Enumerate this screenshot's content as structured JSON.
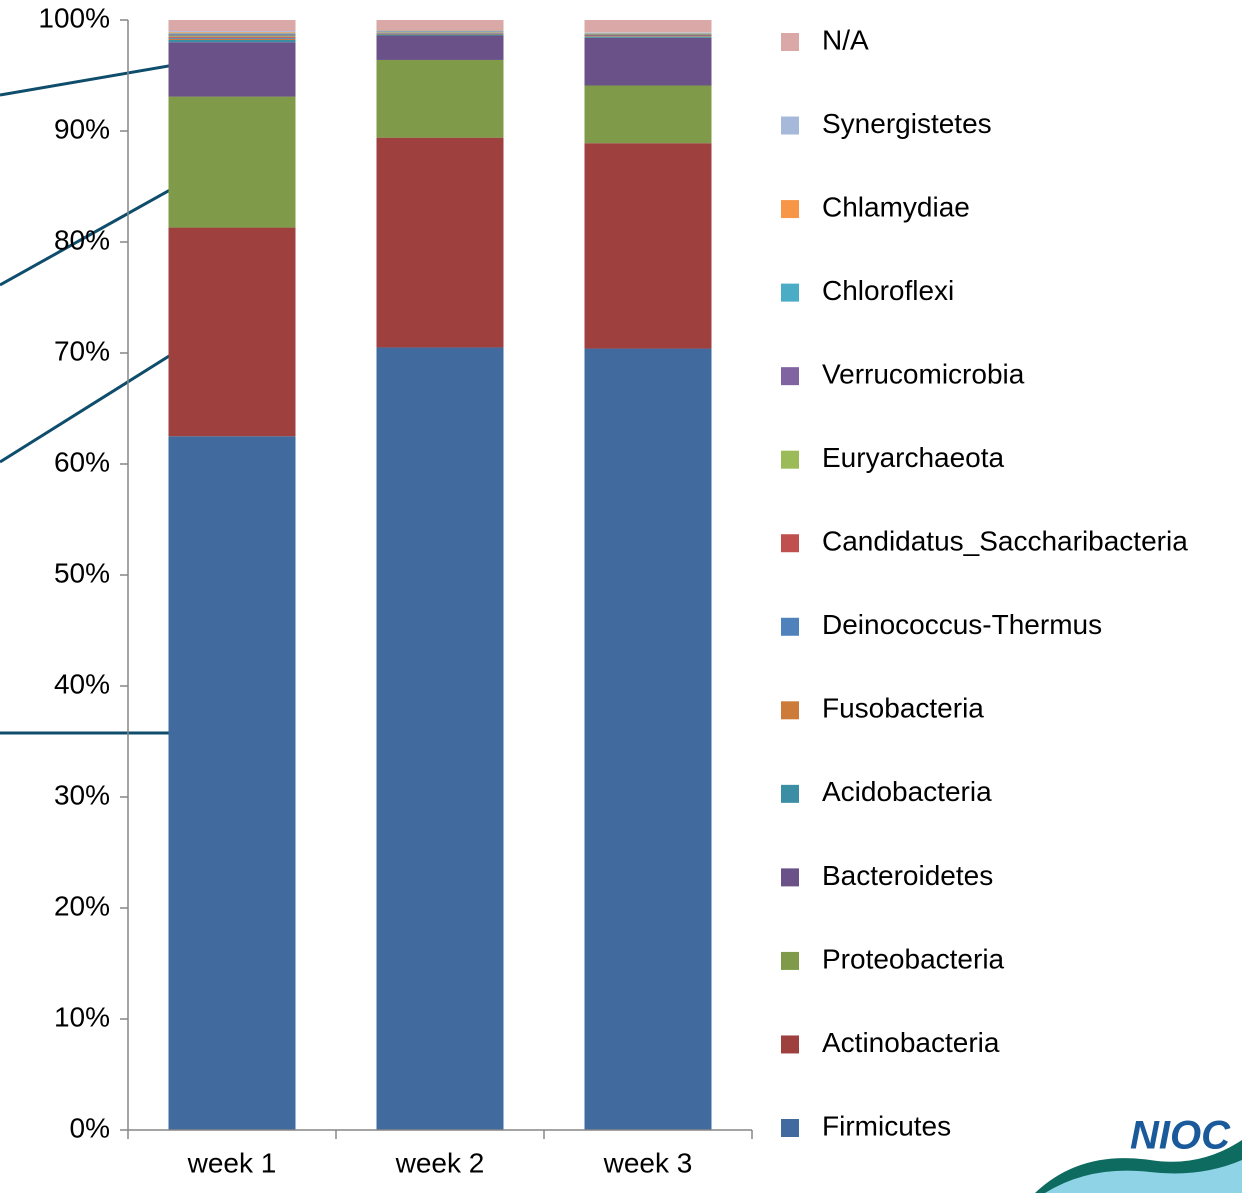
{
  "chart_data": {
    "type": "stacked-bar",
    "categories": [
      "week 1",
      "week 2",
      "week 3"
    ],
    "series": [
      {
        "name": "Firmicutes",
        "color": "#416a9f",
        "values": [
          62.5,
          70.5,
          70.4
        ]
      },
      {
        "name": "Actinobacteria",
        "color": "#9e413e",
        "values": [
          18.8,
          18.9,
          18.5
        ]
      },
      {
        "name": "Proteobacteria",
        "color": "#7f9b49",
        "values": [
          11.8,
          7.0,
          5.2
        ]
      },
      {
        "name": "Bacteroidetes",
        "color": "#6a5187",
        "values": [
          4.9,
          2.2,
          4.3
        ]
      },
      {
        "name": "Acidobacteria",
        "color": "#3b8ea3",
        "values": [
          0.2,
          0.1,
          0.1
        ]
      },
      {
        "name": "Fusobacteria",
        "color": "#cc7b38",
        "values": [
          0.1,
          0.05,
          0.05
        ]
      },
      {
        "name": "Deinococcus-Thermus",
        "color": "#4f81bd",
        "values": [
          0.1,
          0.05,
          0.05
        ]
      },
      {
        "name": "Candidatus_Saccharibacteria",
        "color": "#c0504d",
        "values": [
          0.1,
          0.05,
          0.05
        ]
      },
      {
        "name": "Euryarchaeota",
        "color": "#9bbb59",
        "values": [
          0.1,
          0.05,
          0.05
        ]
      },
      {
        "name": "Verrucomicrobia",
        "color": "#8064a2",
        "values": [
          0.1,
          0.05,
          0.05
        ]
      },
      {
        "name": "Chloroflexi",
        "color": "#4bacc6",
        "values": [
          0.1,
          0.05,
          0.05
        ]
      },
      {
        "name": "Chlamydiae",
        "color": "#f79646",
        "values": [
          0.1,
          0.05,
          0.05
        ]
      },
      {
        "name": "Synergistetes",
        "color": "#a7b9da",
        "values": [
          0.1,
          0.05,
          0.05
        ]
      },
      {
        "name": "N/A",
        "color": "#dba8a8",
        "values": [
          1.0,
          0.9,
          1.1
        ]
      }
    ],
    "ylim": [
      0,
      100
    ],
    "yticks": [
      {
        "value": 0,
        "label": "0%"
      },
      {
        "value": 10,
        "label": "10%"
      },
      {
        "value": 20,
        "label": "20%"
      },
      {
        "value": 30,
        "label": "30%"
      },
      {
        "value": 40,
        "label": "40%"
      },
      {
        "value": 50,
        "label": "50%"
      },
      {
        "value": 60,
        "label": "60%"
      },
      {
        "value": 70,
        "label": "70%"
      },
      {
        "value": 80,
        "label": "80%"
      },
      {
        "value": 90,
        "label": "90%"
      },
      {
        "value": 100,
        "label": "100%"
      }
    ],
    "legend": "right"
  },
  "logo": "NIOC"
}
